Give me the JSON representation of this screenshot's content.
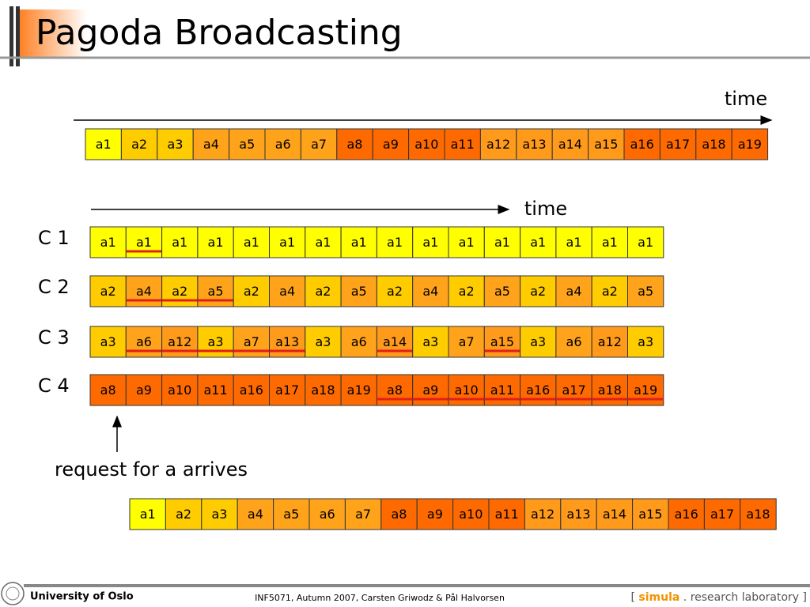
{
  "title": "Pagoda Broadcasting",
  "sequence": {
    "time_label": "time",
    "cells": [
      "a1",
      "a2",
      "a3",
      "a4",
      "a5",
      "a6",
      "a7",
      "a8",
      "a9",
      "a10",
      "a11",
      "a12",
      "a13",
      "a14",
      "a15",
      "a16",
      "a17",
      "a18",
      "a19"
    ]
  },
  "channels": {
    "time_label": "time",
    "rows": [
      {
        "label": "C 1",
        "cells": [
          "a1",
          "a1",
          "a1",
          "a1",
          "a1",
          "a1",
          "a1",
          "a1",
          "a1",
          "a1",
          "a1",
          "a1",
          "a1",
          "a1",
          "a1",
          "a1"
        ]
      },
      {
        "label": "C 2",
        "cells": [
          "a2",
          "a4",
          "a2",
          "a5",
          "a2",
          "a4",
          "a2",
          "a5",
          "a2",
          "a4",
          "a2",
          "a5",
          "a2",
          "a4",
          "a2",
          "a5"
        ]
      },
      {
        "label": "C 3",
        "cells": [
          "a3",
          "a6",
          "a12",
          "a3",
          "a7",
          "a13",
          "a3",
          "a6",
          "a14",
          "a3",
          "a7",
          "a15",
          "a3",
          "a6",
          "a12",
          "a3"
        ]
      },
      {
        "label": "C 4",
        "cells": [
          "a8",
          "a9",
          "a10",
          "a11",
          "a16",
          "a17",
          "a18",
          "a19",
          "a8",
          "a9",
          "a10",
          "a11",
          "a16",
          "a17",
          "a18",
          "a19"
        ]
      }
    ]
  },
  "request_label": "request for a arrives",
  "playback": {
    "cells": [
      "a1",
      "a2",
      "a3",
      "a4",
      "a5",
      "a6",
      "a7",
      "a8",
      "a9",
      "a10",
      "a11",
      "a12",
      "a13",
      "a14",
      "a15",
      "a16",
      "a17",
      "a18"
    ]
  },
  "footer": {
    "university": "University of Oslo",
    "course": "INF5071,  Autumn 2007,  Carsten Griwodz & Pål Halvorsen",
    "brand": [
      "[",
      "simula",
      ".",
      "research laboratory",
      "]"
    ]
  }
}
